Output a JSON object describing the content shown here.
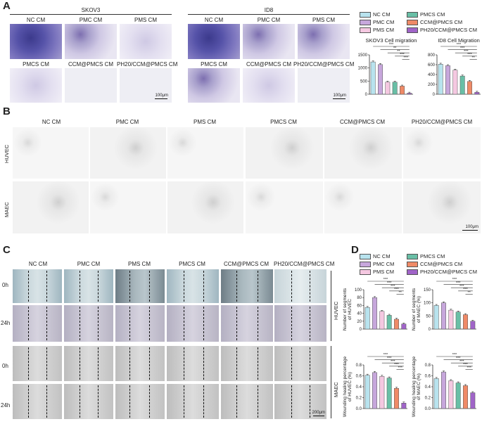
{
  "panels": {
    "A": "A",
    "B": "B",
    "C": "C",
    "D": "D"
  },
  "colors": {
    "nc": "#b8e3ee",
    "pmc": "#c7a7dc",
    "pms": "#f5c8e1",
    "pmcs": "#69bfa6",
    "ccm": "#ef8a67",
    "ph20": "#a064c8"
  },
  "A": {
    "skov3_title": "SKOV3",
    "id8_title": "ID8",
    "skov3_top": [
      "NC CM",
      "PMC CM",
      "PMS CM"
    ],
    "skov3_bottom": [
      "PMCS CM",
      "CCM@PMCS CM",
      "PH20/CCM@PMCS CM"
    ],
    "id8_top": [
      "NC CM",
      "PMC CM",
      "PMS CM"
    ],
    "id8_bottom": [
      "PMCS CM",
      "CCM@PMCS CM",
      "PH20/CCM@PMCS CM"
    ],
    "scalebar": "100μm"
  },
  "legendA": [
    "NC CM",
    "PMC CM",
    "PMS CM",
    "PMCS CM",
    "CCM@PMCS CM",
    "PH20/CCM@PMCS CM"
  ],
  "legendD": [
    "NC CM",
    "PMC CM",
    "PMS CM",
    "PMCS CM",
    "CCM@PMCS CM",
    "PH20/CCM@PMCS CM"
  ],
  "B": {
    "cols": [
      "NC CM",
      "PMC CM",
      "PMS CM",
      "PMCS CM",
      "CCM@PMCS CM",
      "PH20/CCM@PMCS CM"
    ],
    "rows": [
      "HUVEC",
      "MAEC"
    ],
    "scalebar": "100μm"
  },
  "C": {
    "cols": [
      "NC CM",
      "PMC CM",
      "PMS CM",
      "PMCS CM",
      "CCM@PMCS CM",
      "PH20/CCM@PMCS CM"
    ],
    "times": [
      "0h",
      "24h",
      "0h",
      "24h"
    ],
    "groups": [
      "HUVEC",
      "MAEC"
    ],
    "scalebar": "200μm"
  },
  "chart_data": [
    {
      "type": "bar",
      "title": "SKOV3 Cell migration",
      "categories": [
        "NC CM",
        "PMC CM",
        "PMS CM",
        "PMCS CM",
        "CCM@PMCS CM",
        "PH20/CCM@PMCS CM"
      ],
      "values": [
        1230,
        1130,
        460,
        460,
        310,
        40
      ],
      "ylim": [
        0,
        1500
      ],
      "yticks": [
        0,
        500,
        1000,
        1500
      ],
      "sig": [
        "***",
        "**",
        "**",
        "***",
        "***"
      ]
    },
    {
      "type": "bar",
      "title": "ID8 Cell Migration",
      "categories": [
        "NC CM",
        "PMC CM",
        "PMS CM",
        "PMCS CM",
        "CCM@PMCS CM",
        "PH20/CCM@PMCS CM"
      ],
      "values": [
        610,
        580,
        490,
        370,
        260,
        40
      ],
      "ylim": [
        0,
        800
      ],
      "yticks": [
        0,
        200,
        400,
        600,
        800
      ],
      "sig": [
        "***",
        "***",
        "***",
        "***",
        "**"
      ]
    },
    {
      "type": "bar",
      "ylabel": "Number of segments of HUVEC",
      "categories": [
        "NC CM",
        "PMC CM",
        "PMS CM",
        "PMCS CM",
        "CCM@PMCS CM",
        "PH20/CCM@PMCS CM"
      ],
      "values": [
        55,
        80,
        45,
        35,
        25,
        13
      ],
      "ylim": [
        0,
        100
      ],
      "yticks": [
        0,
        20,
        40,
        60,
        80,
        100
      ],
      "sig": [
        "***",
        "***",
        "***",
        "***",
        "**"
      ]
    },
    {
      "type": "bar",
      "ylabel": "Number of segments of MAEC (%)",
      "categories": [
        "NC CM",
        "PMC CM",
        "PMS CM",
        "PMCS CM",
        "CCM@PMCS CM",
        "PH20/CCM@PMCS CM"
      ],
      "values": [
        90,
        100,
        72,
        65,
        55,
        30
      ],
      "ylim": [
        0,
        150
      ],
      "yticks": [
        0,
        50,
        100,
        150
      ],
      "sig": [
        "***",
        "***",
        "***",
        "***",
        "**"
      ]
    },
    {
      "type": "bar",
      "ylabel": "Wounding healing percentage of HUVEC (%)",
      "categories": [
        "NC CM",
        "PMC CM",
        "PMS CM",
        "PMCS CM",
        "CCM@PMCS CM",
        "PH20/CCM@PMCS CM"
      ],
      "values": [
        0.61,
        0.66,
        0.59,
        0.56,
        0.37,
        0.1
      ],
      "ylim": [
        0,
        0.8
      ],
      "yticks": [
        "0.0",
        "0.2",
        "0.4",
        "0.6",
        "0.8"
      ],
      "sig": [
        "***",
        "***",
        "***",
        "***",
        "***"
      ]
    },
    {
      "type": "bar",
      "ylabel": "Wounding healing percentage of MAEC (%)",
      "categories": [
        "NC CM",
        "PMC CM",
        "PMS CM",
        "PMCS CM",
        "CCM@PMCS CM",
        "PH20/CCM@PMCS CM"
      ],
      "values": [
        0.55,
        0.67,
        0.51,
        0.47,
        0.42,
        0.29
      ],
      "ylim": [
        0,
        0.8
      ],
      "yticks": [
        "0.0",
        "0.2",
        "0.4",
        "0.6",
        "0.8"
      ],
      "sig": [
        "***",
        "***",
        "***",
        "***",
        "***"
      ]
    }
  ]
}
